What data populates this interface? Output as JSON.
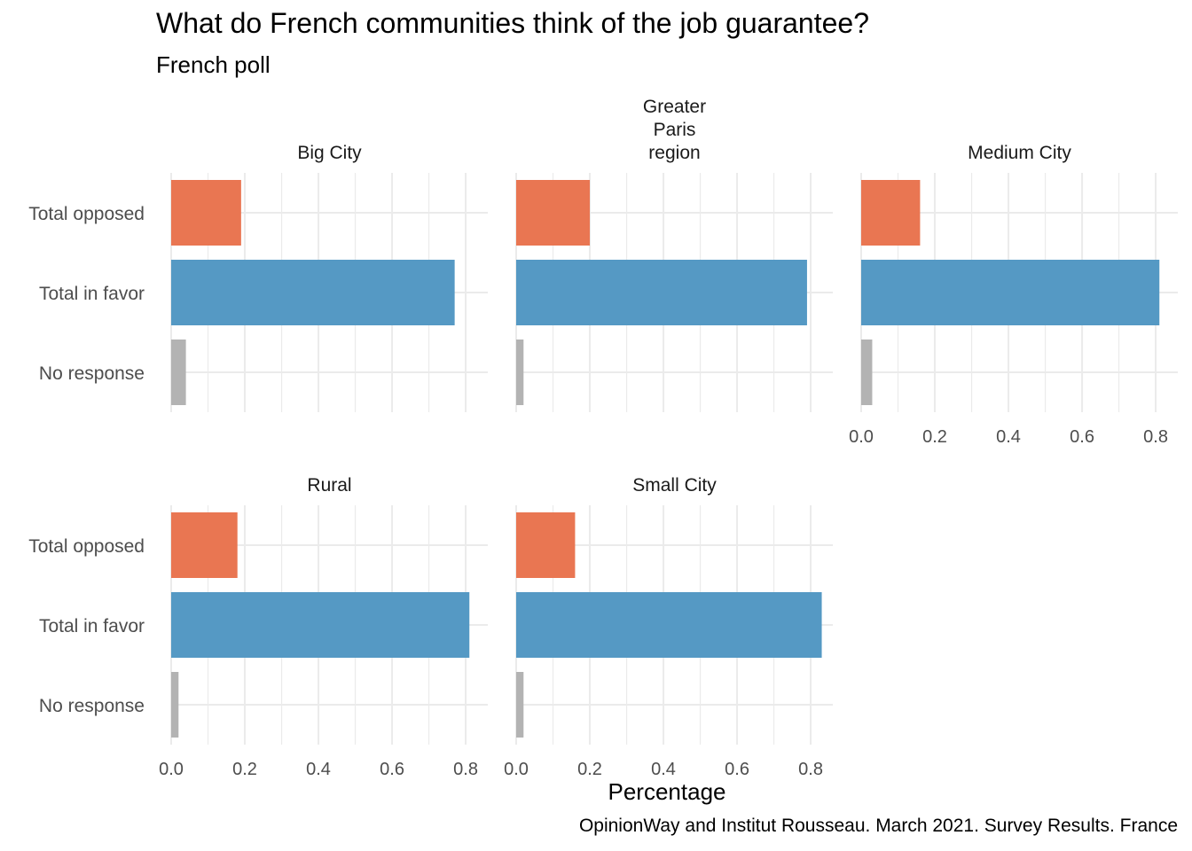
{
  "title": "What do French communities think of the job guarantee?",
  "subtitle": "French poll",
  "caption": "OpinionWay and Institut Rousseau. March 2021. Survey Results. France",
  "chart_data": {
    "type": "bar",
    "orientation": "horizontal",
    "facet_wrap": {
      "ncol": 3,
      "nrow": 2
    },
    "categories": [
      "Total opposed",
      "Total in favor",
      "No response"
    ],
    "colors": {
      "Total opposed": "#E97652",
      "Total in favor": "#5599C4",
      "No response": "#B3B3B3"
    },
    "xlabel": "Percentage",
    "xlim": [
      0,
      0.86
    ],
    "x_ticks": [
      "0.0",
      "0.2",
      "0.4",
      "0.6",
      "0.8"
    ],
    "grid": true,
    "facets": [
      {
        "name": "Big City",
        "values": [
          0.19,
          0.77,
          0.04
        ]
      },
      {
        "name": "Greater\nParis\nregion",
        "values": [
          0.2,
          0.79,
          0.02
        ]
      },
      {
        "name": "Medium City",
        "values": [
          0.16,
          0.81,
          0.03
        ]
      },
      {
        "name": "Rural",
        "values": [
          0.18,
          0.81,
          0.02
        ]
      },
      {
        "name": "Small City",
        "values": [
          0.16,
          0.83,
          0.02
        ]
      }
    ]
  }
}
